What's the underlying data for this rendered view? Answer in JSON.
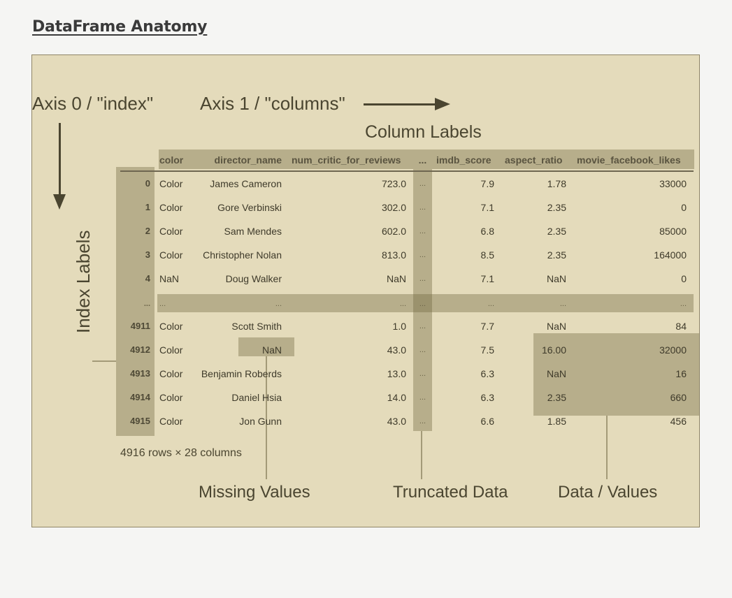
{
  "page": {
    "title": "DataFrame Anatomy"
  },
  "diagram": {
    "axis0_label": "Axis 0 / \"index\"",
    "axis1_label": "Axis 1 / \"columns\"",
    "column_labels_caption": "Column Labels",
    "index_labels_caption": "Index Labels",
    "summary": "4916 rows × 28 columns",
    "callouts": {
      "missing": "Missing Values",
      "truncated": "Truncated Data",
      "values": "Data / Values"
    }
  },
  "table": {
    "headers": [
      "color",
      "director_name",
      "num_critic_for_reviews",
      "...",
      "imdb_score",
      "aspect_ratio",
      "movie_facebook_likes"
    ],
    "rows": [
      [
        "0",
        "Color",
        "James Cameron",
        "723.0",
        "...",
        "7.9",
        "1.78",
        "33000"
      ],
      [
        "1",
        "Color",
        "Gore Verbinski",
        "302.0",
        "...",
        "7.1",
        "2.35",
        "0"
      ],
      [
        "2",
        "Color",
        "Sam Mendes",
        "602.0",
        "...",
        "6.8",
        "2.35",
        "85000"
      ],
      [
        "3",
        "Color",
        "Christopher Nolan",
        "813.0",
        "...",
        "8.5",
        "2.35",
        "164000"
      ],
      [
        "4",
        "NaN",
        "Doug Walker",
        "NaN",
        "...",
        "7.1",
        "NaN",
        "0"
      ],
      [
        "...",
        "...",
        "...",
        "...",
        "...",
        "...",
        "...",
        "..."
      ],
      [
        "4911",
        "Color",
        "Scott Smith",
        "1.0",
        "...",
        "7.7",
        "NaN",
        "84"
      ],
      [
        "4912",
        "Color",
        "NaN",
        "43.0",
        "...",
        "7.5",
        "16.00",
        "32000"
      ],
      [
        "4913",
        "Color",
        "Benjamin Roberds",
        "13.0",
        "...",
        "6.3",
        "NaN",
        "16"
      ],
      [
        "4914",
        "Color",
        "Daniel Hsia",
        "14.0",
        "...",
        "6.3",
        "2.35",
        "660"
      ],
      [
        "4915",
        "Color",
        "Jon Gunn",
        "43.0",
        "...",
        "6.6",
        "1.85",
        "456"
      ]
    ]
  }
}
